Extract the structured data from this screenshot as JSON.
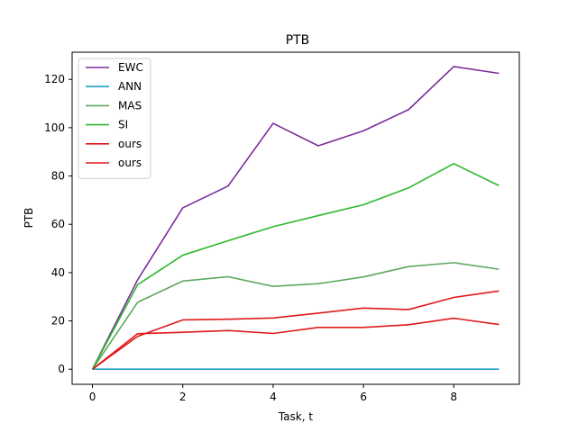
{
  "chart_data": {
    "type": "line",
    "title": "PTB",
    "xlabel": "Task, t",
    "ylabel": "PTB",
    "xlim": [
      -0.45,
      9.45
    ],
    "ylim": [
      -6.25,
      131.25
    ],
    "xticks": [
      0,
      2,
      4,
      6,
      8
    ],
    "yticks": [
      0,
      20,
      40,
      60,
      80,
      100,
      120
    ],
    "grid": false,
    "legend": "top-left",
    "x": [
      0,
      1,
      2,
      3,
      4,
      5,
      6,
      7,
      8,
      9
    ],
    "series": [
      {
        "name": "EWC",
        "color": "#7b2d9a",
        "values": [
          0,
          37,
          66.8,
          75.8,
          101.8,
          92.5,
          98.7,
          107.5,
          125.3,
          122.5
        ]
      },
      {
        "name": "ANN",
        "color": "#1f9fc4",
        "values": [
          0,
          0,
          0,
          0,
          0,
          0,
          0,
          0,
          0,
          0
        ]
      },
      {
        "name": "MAS",
        "color": "#5fa85f",
        "values": [
          0,
          27.7,
          36.5,
          38.3,
          34.3,
          35.4,
          38.2,
          42.5,
          44.1,
          41.4
        ]
      },
      {
        "name": "SI",
        "color": "#2db82d",
        "values": [
          0,
          35,
          47.2,
          53.2,
          59,
          63.6,
          68.1,
          75.1,
          85.1,
          76
        ]
      },
      {
        "name": "ours",
        "color": "#e0191b",
        "values": [
          0,
          14.7,
          15.3,
          16,
          14.8,
          17.3,
          17.3,
          18.4,
          21.1,
          18.5
        ]
      },
      {
        "name": "ours",
        "color": "#e0191b",
        "values": [
          0,
          13.6,
          20.4,
          20.7,
          21.2,
          23.2,
          25.3,
          24.7,
          29.7,
          32.4
        ]
      }
    ]
  }
}
